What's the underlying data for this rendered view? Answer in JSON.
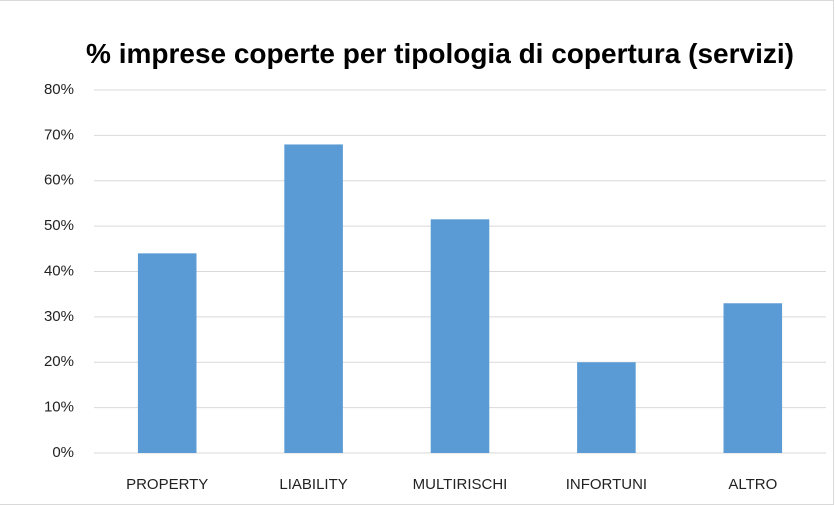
{
  "chart_data": {
    "type": "bar",
    "title": "% imprese coperte per tipologia di copertura (servizi)",
    "categories": [
      "PROPERTY",
      "LIABILITY",
      "MULTIRISCHI",
      "INFORTUNI",
      "ALTRO"
    ],
    "values": [
      44,
      68,
      51.5,
      20,
      33
    ],
    "color": "#5b9bd5",
    "ylim": [
      0,
      80
    ],
    "yticks": [
      {
        "value": 0,
        "label": "0%"
      },
      {
        "value": 10,
        "label": "10%"
      },
      {
        "value": 20,
        "label": "20%"
      },
      {
        "value": 30,
        "label": "30%"
      },
      {
        "value": 40,
        "label": "40%"
      },
      {
        "value": 50,
        "label": "50%"
      },
      {
        "value": 60,
        "label": "60%"
      },
      {
        "value": 70,
        "label": "70%"
      },
      {
        "value": 80,
        "label": "80%"
      }
    ],
    "grid": true
  }
}
